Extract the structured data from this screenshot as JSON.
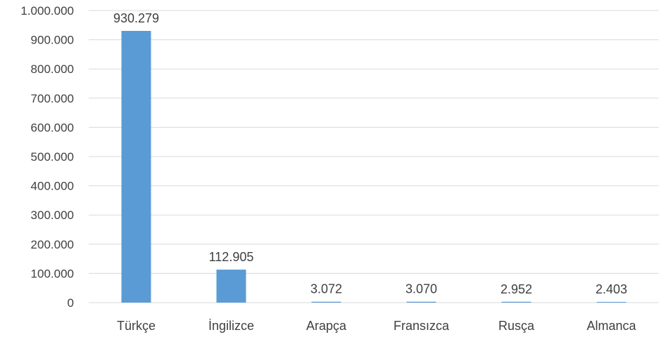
{
  "chart_data": {
    "type": "bar",
    "categories": [
      "Türkçe",
      "İngilizce",
      "Arapça",
      "Fransızca",
      "Rusça",
      "Almanca"
    ],
    "values": [
      930279,
      112905,
      3072,
      3070,
      2952,
      2403
    ],
    "value_labels": [
      "930.279",
      "112.905",
      "3.072",
      "3.070",
      "2.952",
      "2.403"
    ],
    "y_ticks": [
      0,
      100000,
      200000,
      300000,
      400000,
      500000,
      600000,
      700000,
      800000,
      900000,
      1000000
    ],
    "y_tick_labels": [
      "0",
      "100.000",
      "200.000",
      "300.000",
      "400.000",
      "500.000",
      "600.000",
      "700.000",
      "800.000",
      "900.000",
      "1.000.000"
    ],
    "ylim": [
      0,
      1000000
    ],
    "grid": true,
    "legend": "none",
    "colors": {
      "bar": "#5b9bd5",
      "grid": "#d9d9d9",
      "text": "#404040"
    }
  }
}
